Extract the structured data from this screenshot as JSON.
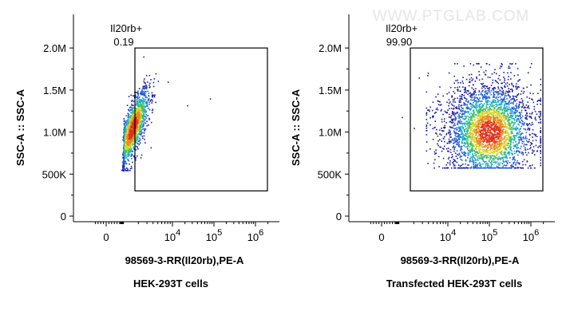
{
  "watermark": "WWW.PTGLAB.COM",
  "colors": {
    "gate": "#000000",
    "axis": "#000000",
    "text": "#000000",
    "watermark": "#e6e6e6",
    "density": [
      "#1a1aa8",
      "#1f5bd6",
      "#18a8c8",
      "#3ec06a",
      "#d8d21e",
      "#e8881c",
      "#e03018"
    ]
  },
  "chart_data": [
    {
      "type": "scatter",
      "subtype": "flow-cytometry-density-dot-plot",
      "xlabel": "98569-3-RR(Il20rb),PE-A",
      "ylabel": "SSC-A :: SSC-A",
      "caption": "HEK-293T cells",
      "x_scale": "biexponential",
      "x_ticks": [
        "0",
        "10^4",
        "10^5",
        "10^6"
      ],
      "y_ticks": [
        "0",
        "500K",
        "1.0M",
        "1.5M",
        "2.0M"
      ],
      "ylim": [
        0,
        2400000
      ],
      "gate": {
        "name": "Il20rb+",
        "percent": "0.19",
        "x_range": [
          "3.2*10^3",
          "10^6.3"
        ],
        "y_range": [
          300000,
          2000000
        ]
      },
      "population": {
        "x_center": "≈1.5*10^3",
        "y_range": [
          550000,
          1650000
        ],
        "percent_in_gate": 0.19
      }
    },
    {
      "type": "scatter",
      "subtype": "flow-cytometry-density-dot-plot",
      "xlabel": "98569-3-RR(Il20rb),PE-A",
      "ylabel": "SSC-A :: SSC-A",
      "caption": "Transfected HEK-293T cells",
      "x_scale": "biexponential",
      "x_ticks": [
        "0",
        "10^4",
        "10^5",
        "10^6"
      ],
      "y_ticks": [
        "0",
        "500K",
        "1.0M",
        "1.5M",
        "2.0M"
      ],
      "ylim": [
        0,
        2400000
      ],
      "gate": {
        "name": "Il20rb+",
        "percent": "99.90",
        "x_range": [
          "3.2*10^3",
          "10^6.3"
        ],
        "y_range": [
          300000,
          2000000
        ]
      },
      "population": {
        "x_center": "≈10^5",
        "y_range": [
          550000,
          1800000
        ],
        "percent_in_gate": 99.9
      }
    }
  ]
}
